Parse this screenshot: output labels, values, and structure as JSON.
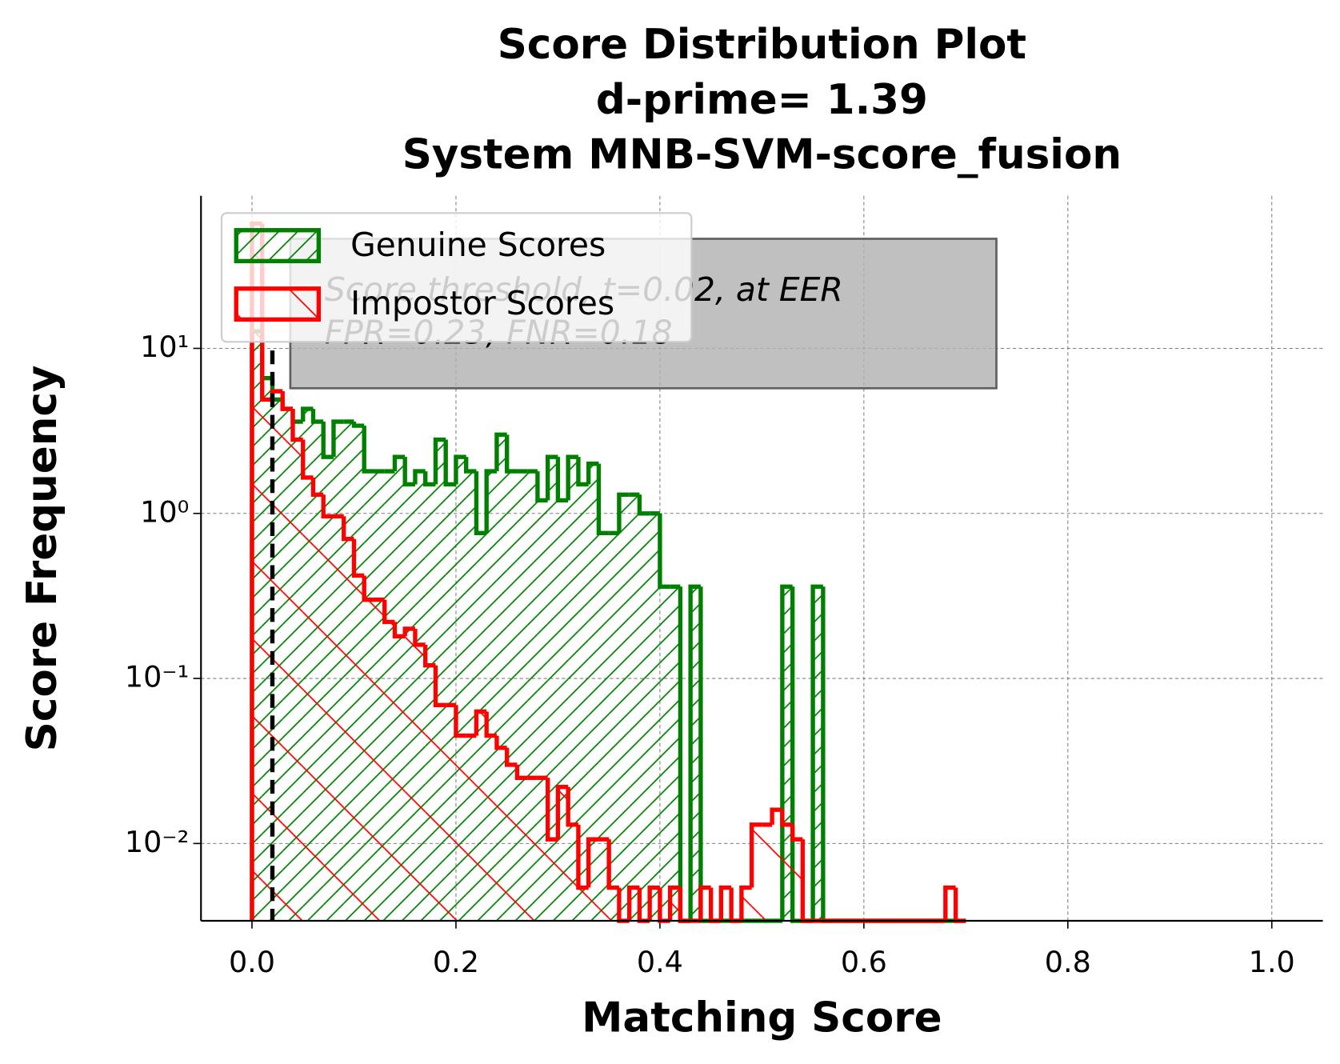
{
  "chart_data": {
    "type": "histogram",
    "title": [
      "Score Distribution Plot",
      "d-prime= 1.39",
      "System MNB-SVM-score_fusion"
    ],
    "xlabel": "Matching Score",
    "ylabel": "Score Frequency",
    "bins": [
      0,
      0.01,
      0.02,
      0.03,
      0.04,
      0.05,
      0.06,
      0.07,
      0.08,
      0.09,
      0.1,
      0.11,
      0.12,
      0.13,
      0.14,
      0.15,
      0.16,
      0.17,
      0.18,
      0.19,
      0.2,
      0.21,
      0.22,
      0.23,
      0.24,
      0.25,
      0.26,
      0.27,
      0.28,
      0.29,
      0.3,
      0.31,
      0.32,
      0.33,
      0.34,
      0.35,
      0.36,
      0.37,
      0.38,
      0.39,
      0.4,
      0.41,
      0.42,
      0.43,
      0.44,
      0.45,
      0.46,
      0.47,
      0.48,
      0.49,
      0.5,
      0.51,
      0.52,
      0.53,
      0.54,
      0.55,
      0.56,
      0.57,
      0.58,
      0.59,
      0.6,
      0.61,
      0.62,
      0.63,
      0.64,
      0.65,
      0.66,
      0.67,
      0.68,
      0.69,
      0.7
    ],
    "series": [
      {
        "name": "Genuine Scores",
        "color": "#008000",
        "hatch": "/",
        "values": [
          12.7,
          6.6,
          4.9,
          4.3,
          3.6,
          4.3,
          3.6,
          2.2,
          3.6,
          3.6,
          3.4,
          1.8,
          1.8,
          1.8,
          2.2,
          1.5,
          1.8,
          1.5,
          2.8,
          1.5,
          2.2,
          1.8,
          0.76,
          1.8,
          3.0,
          1.8,
          1.8,
          1.8,
          1.2,
          2.2,
          1.2,
          2.2,
          1.5,
          2.0,
          0.76,
          0.76,
          1.3,
          1.3,
          1.0,
          1.0,
          0.36,
          0.36,
          0,
          0.36,
          0,
          0,
          0,
          0,
          0,
          0,
          0,
          0,
          0.36,
          0,
          0,
          0.36,
          0,
          0,
          0,
          0,
          0,
          0,
          0,
          0,
          0,
          0,
          0,
          0,
          0,
          0
        ]
      },
      {
        "name": "Impostor Scores",
        "color": "#ff0000",
        "hatch": "\\",
        "values": [
          57,
          4.9,
          5.5,
          4.3,
          2.8,
          1.65,
          1.3,
          0.96,
          0.96,
          0.7,
          0.42,
          0.3,
          0.3,
          0.22,
          0.18,
          0.2,
          0.16,
          0.12,
          0.069,
          0.069,
          0.045,
          0.045,
          0.063,
          0.045,
          0.038,
          0.03,
          0.025,
          0.025,
          0.025,
          0.0106,
          0.022,
          0.013,
          0.0054,
          0.0106,
          0.0106,
          0.0054,
          0,
          0.0054,
          0,
          0.0054,
          0,
          0.0054,
          0,
          0,
          0.0054,
          0,
          0.0054,
          0,
          0.0054,
          0.013,
          0.013,
          0.016,
          0.013,
          0.0106,
          0,
          0,
          0,
          0,
          0,
          0,
          0,
          0,
          0,
          0,
          0,
          0,
          0,
          0,
          0.0054,
          0
        ]
      }
    ],
    "threshold": 0.02,
    "annotation": [
      "Score threshold, t=0.02, at EER",
      "FPR=0.23, FNR=0.18"
    ],
    "xlim": [
      -0.05,
      1.05
    ],
    "xticks": [
      {
        "value": 0,
        "label": "0.0"
      },
      0.2,
      0.4,
      0.6,
      0.8,
      {
        "value": 1,
        "label": "1.0"
      }
    ],
    "ylim": [
      0.0034,
      84
    ],
    "yscale": "log",
    "yticks": [
      {
        "value": 0.01,
        "label": "10⁻²"
      },
      {
        "value": 0.1,
        "label": "10⁻¹"
      },
      {
        "value": 1,
        "label": "10⁰"
      },
      {
        "value": 10,
        "label": "10¹"
      }
    ],
    "grid": true,
    "legend": "upper left"
  }
}
